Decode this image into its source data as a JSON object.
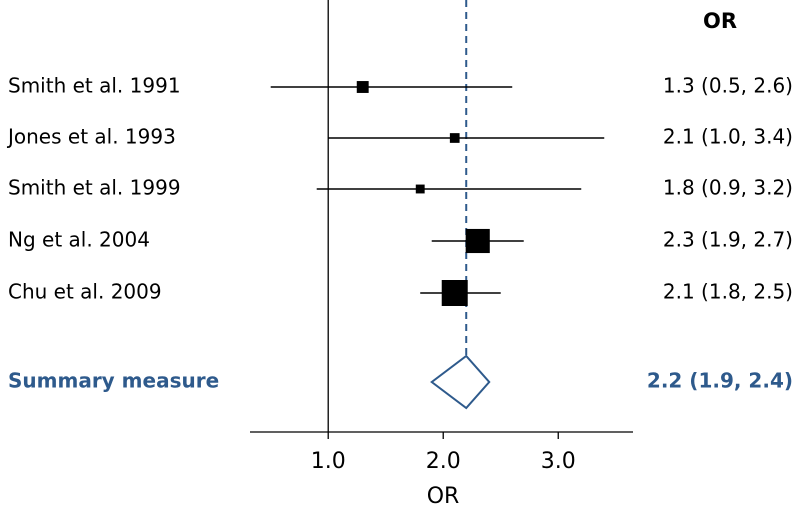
{
  "chart_data": {
    "type": "forest",
    "column_header": "OR",
    "x_label": "OR",
    "categories": [
      "Smith et al. 1991",
      "Jones et al. 1993",
      "Smith et al. 1999",
      "Ng et al. 2004",
      "Chu et al. 2009"
    ],
    "values": [
      1.3,
      2.1,
      1.8,
      2.3,
      2.1
    ],
    "lower": [
      0.5,
      1.0,
      0.9,
      1.9,
      1.8
    ],
    "upper": [
      2.6,
      3.4,
      3.2,
      2.7,
      2.5
    ],
    "weights": [
      9,
      6,
      5,
      37,
      43
    ],
    "value_labels": [
      "1.3 (0.5, 2.6)",
      "2.1 (1.0, 3.4)",
      "1.8 (0.9, 3.2)",
      "2.3 (1.9, 2.7)",
      "2.1 (1.8, 2.5)"
    ],
    "color": "#000000",
    "summary": {
      "name": "Summary measure",
      "value": 2.2,
      "lower": 1.9,
      "upper": 2.4,
      "label": "2.2 (1.9, 2.4)",
      "color": "#2e5a8c"
    },
    "null_line": 1,
    "xlim": [
      0.32,
      3.65
    ],
    "xticks": [
      {
        "value": 1,
        "label": "1.0"
      },
      {
        "value": 2,
        "label": "2.0"
      },
      {
        "value": 3,
        "label": "3.0"
      }
    ]
  }
}
